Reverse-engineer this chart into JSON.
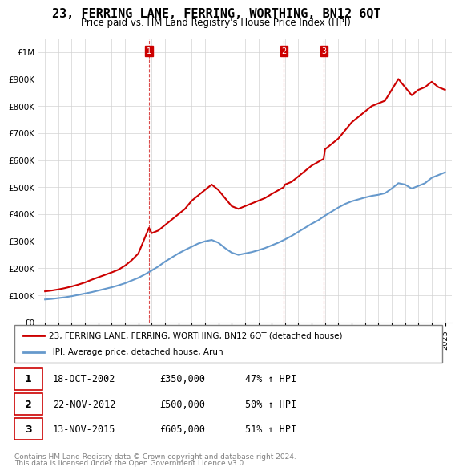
{
  "title": "23, FERRING LANE, FERRING, WORTHING, BN12 6QT",
  "subtitle": "Price paid vs. HM Land Registry's House Price Index (HPI)",
  "legend_label_red": "23, FERRING LANE, FERRING, WORTHING, BN12 6QT (detached house)",
  "legend_label_blue": "HPI: Average price, detached house, Arun",
  "footer1": "Contains HM Land Registry data © Crown copyright and database right 2024.",
  "footer2": "This data is licensed under the Open Government Licence v3.0.",
  "sales": [
    {
      "num": 1,
      "date": "18-OCT-2002",
      "price": "£350,000",
      "hpi": "47% ↑ HPI"
    },
    {
      "num": 2,
      "date": "22-NOV-2012",
      "price": "£500,000",
      "hpi": "50% ↑ HPI"
    },
    {
      "num": 3,
      "date": "13-NOV-2015",
      "price": "£605,000",
      "hpi": "51% ↑ HPI"
    }
  ],
  "vline_years": [
    2002.8,
    2012.9,
    2015.9
  ],
  "red_color": "#cc0000",
  "blue_color": "#6699cc",
  "vline_color": "#cc0000",
  "ylim": [
    0,
    1050000
  ],
  "xlim_start": 1994.5,
  "xlim_end": 2025.5,
  "yticks": [
    0,
    100000,
    200000,
    300000,
    400000,
    500000,
    600000,
    700000,
    800000,
    900000,
    1000000
  ],
  "ytick_labels": [
    "£0",
    "£100K",
    "£200K",
    "£300K",
    "£400K",
    "£500K",
    "£600K",
    "£700K",
    "£800K",
    "£900K",
    "£1M"
  ],
  "xticks": [
    1995,
    1996,
    1997,
    1998,
    1999,
    2000,
    2001,
    2002,
    2003,
    2004,
    2005,
    2006,
    2007,
    2008,
    2009,
    2010,
    2011,
    2012,
    2013,
    2014,
    2015,
    2016,
    2017,
    2018,
    2019,
    2020,
    2021,
    2022,
    2023,
    2024,
    2025
  ],
  "red_x": [
    1995.0,
    1995.5,
    1996.0,
    1996.5,
    1997.0,
    1997.5,
    1998.0,
    1998.5,
    1999.0,
    1999.5,
    2000.0,
    2000.5,
    2001.0,
    2001.5,
    2002.0,
    2002.8,
    2003.0,
    2003.5,
    2004.0,
    2004.5,
    2005.0,
    2005.5,
    2006.0,
    2006.5,
    2007.0,
    2007.5,
    2008.0,
    2008.5,
    2009.0,
    2009.5,
    2010.0,
    2010.5,
    2011.0,
    2011.5,
    2012.0,
    2012.9,
    2013.0,
    2013.5,
    2014.0,
    2014.5,
    2015.0,
    2015.9,
    2016.0,
    2016.5,
    2017.0,
    2017.5,
    2018.0,
    2018.5,
    2019.0,
    2019.5,
    2020.0,
    2020.5,
    2021.0,
    2021.5,
    2022.0,
    2022.5,
    2023.0,
    2023.5,
    2024.0,
    2024.5,
    2025.0
  ],
  "red_y": [
    115000,
    118000,
    122000,
    127000,
    133000,
    140000,
    148000,
    158000,
    167000,
    176000,
    185000,
    195000,
    210000,
    230000,
    255000,
    350000,
    330000,
    340000,
    360000,
    380000,
    400000,
    420000,
    450000,
    470000,
    490000,
    510000,
    490000,
    460000,
    430000,
    420000,
    430000,
    440000,
    450000,
    460000,
    475000,
    500000,
    510000,
    520000,
    540000,
    560000,
    580000,
    605000,
    640000,
    660000,
    680000,
    710000,
    740000,
    760000,
    780000,
    800000,
    810000,
    820000,
    860000,
    900000,
    870000,
    840000,
    860000,
    870000,
    890000,
    870000,
    860000
  ],
  "blue_x": [
    1995.0,
    1995.5,
    1996.0,
    1996.5,
    1997.0,
    1997.5,
    1998.0,
    1998.5,
    1999.0,
    1999.5,
    2000.0,
    2000.5,
    2001.0,
    2001.5,
    2002.0,
    2002.5,
    2003.0,
    2003.5,
    2004.0,
    2004.5,
    2005.0,
    2005.5,
    2006.0,
    2006.5,
    2007.0,
    2007.5,
    2008.0,
    2008.5,
    2009.0,
    2009.5,
    2010.0,
    2010.5,
    2011.0,
    2011.5,
    2012.0,
    2012.5,
    2013.0,
    2013.5,
    2014.0,
    2014.5,
    2015.0,
    2015.5,
    2016.0,
    2016.5,
    2017.0,
    2017.5,
    2018.0,
    2018.5,
    2019.0,
    2019.5,
    2020.0,
    2020.5,
    2021.0,
    2021.5,
    2022.0,
    2022.5,
    2023.0,
    2023.5,
    2024.0,
    2024.5,
    2025.0
  ],
  "blue_y": [
    85000,
    87000,
    90000,
    93000,
    97000,
    102000,
    107000,
    112000,
    118000,
    124000,
    130000,
    137000,
    145000,
    155000,
    165000,
    178000,
    192000,
    207000,
    225000,
    240000,
    255000,
    268000,
    280000,
    292000,
    300000,
    305000,
    295000,
    275000,
    258000,
    250000,
    255000,
    260000,
    267000,
    275000,
    285000,
    295000,
    307000,
    320000,
    335000,
    350000,
    365000,
    378000,
    395000,
    410000,
    425000,
    438000,
    448000,
    455000,
    462000,
    468000,
    472000,
    478000,
    495000,
    515000,
    510000,
    495000,
    505000,
    515000,
    535000,
    545000,
    555000
  ]
}
